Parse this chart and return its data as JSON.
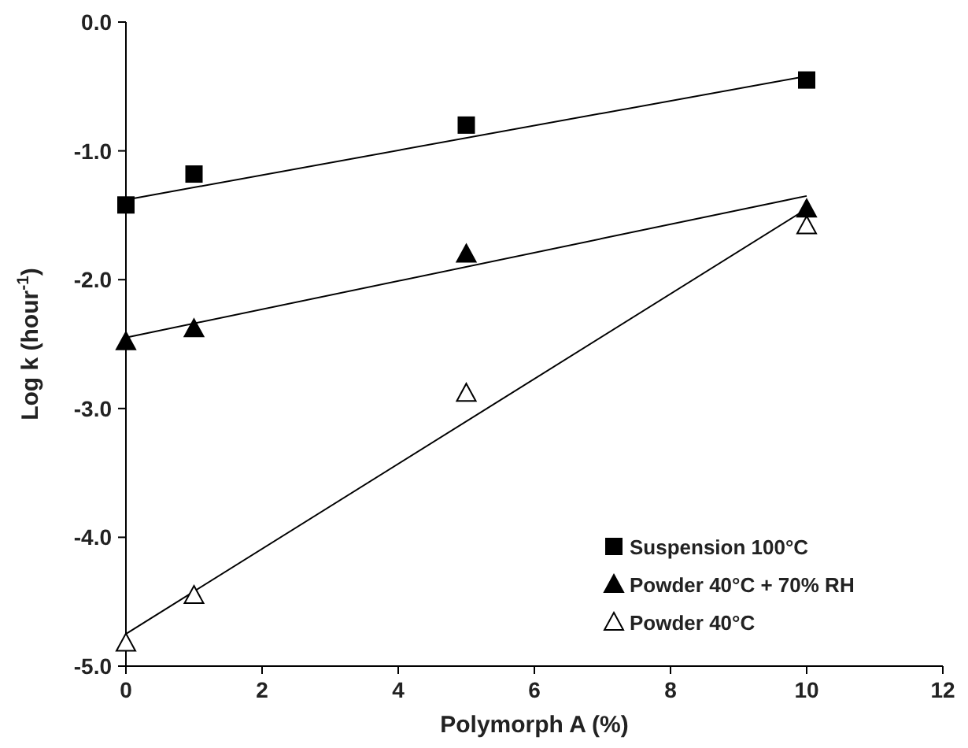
{
  "chart_data": {
    "type": "scatter",
    "xlabel": "Polymorph A (%)",
    "ylabel": "Log k (hour$^{-1}$)",
    "xlim": [
      0,
      12
    ],
    "ylim": [
      -5,
      0
    ],
    "xticks": [
      0,
      2,
      4,
      6,
      8,
      10,
      12
    ],
    "yticks": [
      {
        "value": 0,
        "label": "0.0"
      },
      {
        "value": -1,
        "label": "-1.0"
      },
      {
        "value": -2,
        "label": "-2.0"
      },
      {
        "value": -3,
        "label": "-3.0"
      },
      {
        "value": -4,
        "label": "-4.0"
      },
      {
        "value": -5,
        "label": "-5.0"
      }
    ],
    "legend": "bottom right",
    "grid": false,
    "series": [
      {
        "name": "Suspension 100°C",
        "marker": "square",
        "color": "#000000",
        "x": [
          0,
          1,
          5,
          10
        ],
        "values": [
          -1.42,
          -1.18,
          -0.8,
          -0.45
        ]
      },
      {
        "name": "Powder 40°C + 70% RH",
        "marker": "triangle",
        "color": "#000000",
        "x": [
          0,
          1,
          5,
          10
        ],
        "values": [
          -2.48,
          -2.38,
          -1.8,
          -1.45
        ]
      },
      {
        "name": "Powder 40°C",
        "marker": "triangle",
        "color": "#ffffff",
        "x": [
          0,
          1,
          5,
          10
        ],
        "values": [
          -4.82,
          -4.45,
          -2.88,
          -1.58
        ]
      },
      {
        "type": "line",
        "marker": "none",
        "color": "#000000",
        "x": [
          0,
          10
        ],
        "values": [
          -1.38,
          -0.42
        ]
      },
      {
        "type": "line",
        "marker": "none",
        "color": "#000000",
        "x": [
          0,
          10
        ],
        "values": [
          -2.45,
          -1.35
        ]
      },
      {
        "type": "line",
        "marker": "none",
        "color": "#000000",
        "x": [
          0,
          10
        ],
        "values": [
          -4.75,
          -1.45
        ]
      }
    ]
  }
}
